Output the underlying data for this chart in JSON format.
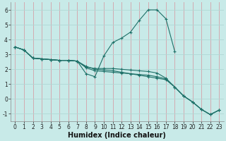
{
  "xlabel": "Humidex (Indice chaleur)",
  "xlim": [
    -0.5,
    23.5
  ],
  "ylim": [
    -1.5,
    6.5
  ],
  "background_color": "#c8eae8",
  "grid_color_v": "#d4a0a8",
  "grid_color_h": "#b0d8d4",
  "line_color": "#1e7068",
  "lines": [
    {
      "x": [
        0,
        1,
        2,
        3,
        4,
        5,
        6,
        7,
        8,
        9,
        10,
        11,
        12,
        13,
        14,
        15,
        16,
        17,
        18
      ],
      "y": [
        3.5,
        3.3,
        2.75,
        2.7,
        2.65,
        2.6,
        2.6,
        2.55,
        1.7,
        1.5,
        2.9,
        3.8,
        4.1,
        4.5,
        5.3,
        6.0,
        6.0,
        5.4,
        3.2
      ]
    },
    {
      "x": [
        0,
        1,
        2,
        3,
        4,
        5,
        6,
        7,
        8,
        9,
        10,
        11,
        12,
        13,
        14,
        15,
        16,
        17,
        18,
        19,
        20,
        21,
        22,
        23
      ],
      "y": [
        3.5,
        3.3,
        2.75,
        2.7,
        2.65,
        2.6,
        2.6,
        2.55,
        2.2,
        2.0,
        1.95,
        1.9,
        1.8,
        1.7,
        1.6,
        1.5,
        1.4,
        1.3,
        0.8,
        0.2,
        -0.2,
        -0.7,
        -1.05,
        -0.75
      ]
    },
    {
      "x": [
        0,
        1,
        2,
        3,
        4,
        5,
        6,
        7,
        8,
        9,
        10,
        11,
        12,
        13,
        14,
        15,
        16,
        17,
        18,
        19,
        20,
        21,
        22,
        23
      ],
      "y": [
        3.5,
        3.3,
        2.75,
        2.7,
        2.65,
        2.6,
        2.6,
        2.55,
        2.1,
        1.9,
        1.85,
        1.8,
        1.75,
        1.7,
        1.65,
        1.6,
        1.5,
        1.35,
        0.8,
        0.2,
        -0.2,
        -0.7,
        -1.05,
        -0.75
      ]
    },
    {
      "x": [
        0,
        1,
        2,
        3,
        4,
        5,
        6,
        7,
        8,
        9,
        10,
        11,
        12,
        13,
        14,
        15,
        16,
        17,
        18,
        19,
        20,
        21,
        22,
        23
      ],
      "y": [
        3.5,
        3.3,
        2.75,
        2.7,
        2.65,
        2.6,
        2.6,
        2.55,
        2.15,
        2.05,
        2.05,
        2.05,
        2.0,
        1.95,
        1.9,
        1.85,
        1.75,
        1.4,
        0.8,
        0.2,
        -0.2,
        -0.7,
        -1.05,
        -0.75
      ]
    }
  ],
  "xticks": [
    0,
    1,
    2,
    3,
    4,
    5,
    6,
    7,
    8,
    9,
    10,
    11,
    12,
    13,
    14,
    15,
    16,
    17,
    18,
    19,
    20,
    21,
    22,
    23
  ],
  "yticks": [
    -1,
    0,
    1,
    2,
    3,
    4,
    5,
    6
  ],
  "tick_fontsize": 5.5,
  "xlabel_fontsize": 7.0
}
